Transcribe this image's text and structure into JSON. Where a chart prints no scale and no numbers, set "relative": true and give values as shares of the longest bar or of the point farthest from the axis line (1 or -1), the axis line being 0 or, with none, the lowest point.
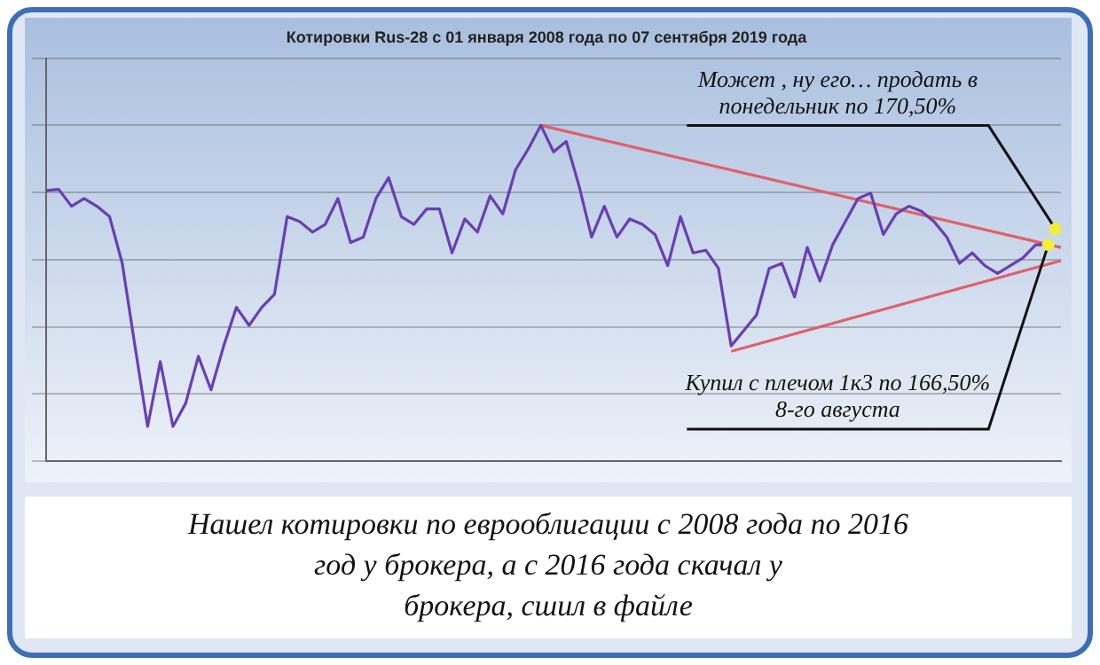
{
  "chart_data": {
    "type": "line",
    "title": "Котировки Rus-28 с 01 января 2008 года по 07 сентября 2019 года",
    "relative": true,
    "grid": "y",
    "legend": false,
    "tick_labels": false,
    "marker": "none",
    "categories": [
      null,
      null,
      null,
      null,
      null,
      null,
      null,
      null,
      null,
      null,
      null,
      null,
      null,
      null,
      null,
      null,
      null,
      null,
      null,
      null,
      null,
      null,
      null,
      null,
      null,
      null,
      null,
      null,
      null,
      null,
      null,
      null,
      null,
      null,
      null,
      null,
      null,
      null,
      null,
      null,
      null,
      null,
      null,
      null,
      null,
      null,
      null,
      null,
      null,
      null,
      null,
      null,
      null,
      null,
      null,
      null,
      null,
      null,
      null,
      null,
      null,
      null,
      null,
      null,
      null,
      null,
      null,
      null,
      null,
      null,
      null,
      null,
      null,
      null,
      null,
      null,
      null,
      null,
      null,
      null,
      null
    ],
    "series": [
      {
        "color": "#6a3fb0",
        "values": [
          0.806,
          0.809,
          0.759,
          0.782,
          0.759,
          0.728,
          0.589,
          0.343,
          0.103,
          0.296,
          0.103,
          0.172,
          0.312,
          0.212,
          0.343,
          0.458,
          0.404,
          0.458,
          0.497,
          0.728,
          0.713,
          0.682,
          0.705,
          0.782,
          0.651,
          0.667,
          0.782,
          0.844,
          0.728,
          0.705,
          0.751,
          0.751,
          0.62,
          0.721,
          0.682,
          0.79,
          0.736,
          0.867,
          0.929,
          1,
          0.921,
          0.952,
          0.821,
          0.667,
          0.759,
          0.667,
          0.721,
          0.705,
          0.675,
          0.582,
          0.728,
          0.62,
          0.628,
          0.574,
          0.343,
          0.389,
          0.435,
          0.574,
          0.589,
          0.489,
          0.636,
          0.536,
          0.644,
          0.713,
          0.782,
          0.798,
          0.675,
          0.736,
          0.759,
          0.744,
          0.713,
          0.667,
          0.589,
          0.62,
          0.582,
          0.559,
          0.582,
          0.605,
          0.644,
          0.644,
          null
        ]
      },
      {
        "color": "#e0606a",
        "values": [
          null,
          null,
          null,
          null,
          null,
          null,
          null,
          null,
          null,
          null,
          null,
          null,
          null,
          null,
          null,
          null,
          null,
          null,
          null,
          null,
          null,
          null,
          null,
          null,
          null,
          null,
          null,
          null,
          null,
          null,
          null,
          null,
          null,
          null,
          null,
          null,
          null,
          null,
          null,
          1,
          null,
          null,
          null,
          null,
          null,
          null,
          null,
          null,
          null,
          null,
          null,
          null,
          null,
          null,
          null,
          null,
          null,
          null,
          null,
          null,
          null,
          null,
          null,
          null,
          null,
          null,
          null,
          null,
          null,
          null,
          null,
          null,
          null,
          null,
          null,
          null,
          null,
          null,
          null,
          null,
          0.636
        ]
      },
      {
        "color": "#e0606a",
        "values": [
          null,
          null,
          null,
          null,
          null,
          null,
          null,
          null,
          null,
          null,
          null,
          null,
          null,
          null,
          null,
          null,
          null,
          null,
          null,
          null,
          null,
          null,
          null,
          null,
          null,
          null,
          null,
          null,
          null,
          null,
          null,
          null,
          null,
          null,
          null,
          null,
          null,
          null,
          null,
          null,
          null,
          null,
          null,
          null,
          null,
          null,
          null,
          null,
          null,
          null,
          null,
          null,
          null,
          null,
          0.327,
          null,
          null,
          null,
          null,
          null,
          null,
          null,
          null,
          null,
          null,
          null,
          null,
          null,
          null,
          null,
          null,
          null,
          null,
          null,
          null,
          null,
          null,
          null,
          null,
          null,
          0.597
        ]
      }
    ],
    "annotations": [
      "Может , ну его… продать в\nпонедельник по 170,50%",
      "Купил с плечом 1к3 по 166,50%\n8-го августа",
      "Нашел котировки по еврооблигации с 2008 года по 2016\nгод у брокера, а с 2016 года скачал у\nброкера, сшил в файле"
    ]
  }
}
